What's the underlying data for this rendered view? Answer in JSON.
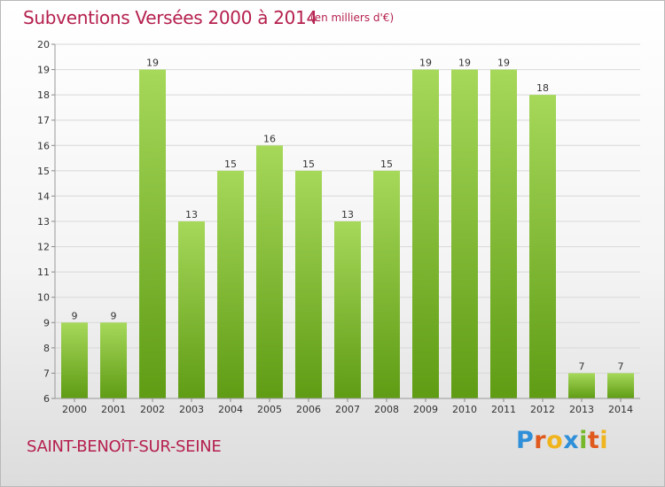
{
  "header": {
    "title": "Subventions Versées 2000 à 2014",
    "subtitle": "(en milliers d'€)"
  },
  "footer": {
    "commune": "SAINT-BENOîT-SUR-SEINE",
    "logo": "Proxiti",
    "logo_colors": [
      "#2f8fd8",
      "#e05a1e",
      "#f0b41c",
      "#2f8fd8",
      "#76b82a",
      "#e05a1e",
      "#f0b41c"
    ]
  },
  "colors": {
    "title": "#b5204e",
    "bar_light": "#a6d85a",
    "bar_dark": "#5f9c14",
    "grid": "#d8d8d8",
    "axis_text": "#333333"
  },
  "chart_data": {
    "type": "bar",
    "title": "Subventions Versées 2000 à 2014",
    "subtitle": "(en milliers d'€)",
    "categories": [
      "2000",
      "2001",
      "2002",
      "2003",
      "2004",
      "2005",
      "2006",
      "2007",
      "2008",
      "2009",
      "2010",
      "2011",
      "2012",
      "2013",
      "2014"
    ],
    "values": [
      9,
      9,
      19,
      13,
      15,
      16,
      15,
      13,
      15,
      19,
      19,
      19,
      18,
      7,
      7
    ],
    "ylim": [
      6,
      20
    ],
    "yticks": [
      6,
      7,
      8,
      9,
      10,
      11,
      12,
      13,
      14,
      15,
      16,
      17,
      18,
      19,
      20
    ],
    "grid": true,
    "data_labels": true
  }
}
